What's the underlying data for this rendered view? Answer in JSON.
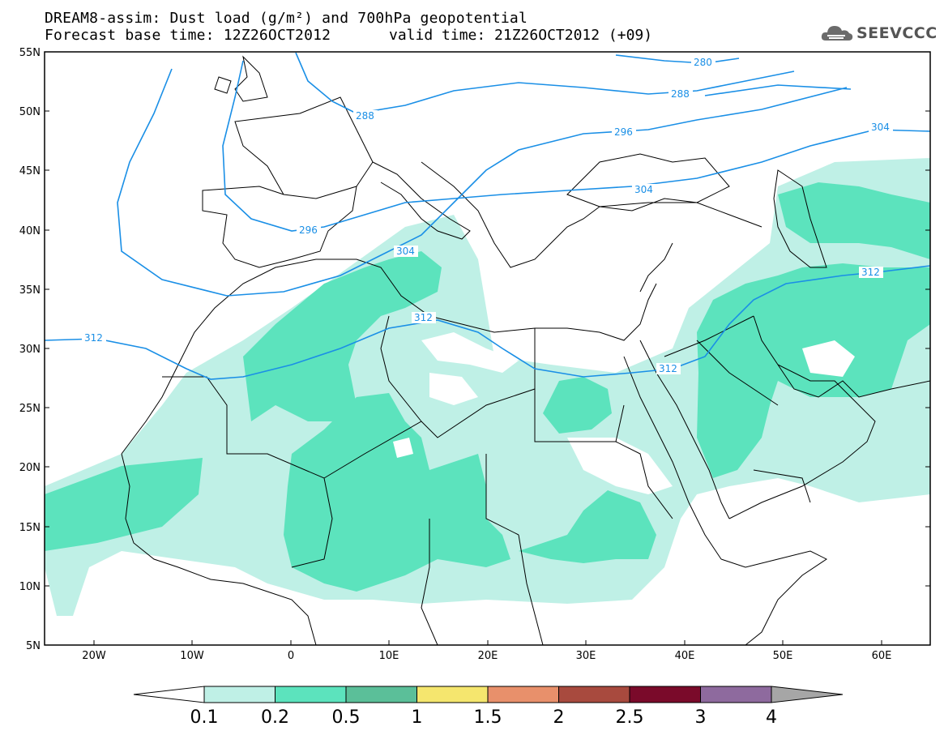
{
  "header": {
    "title_line1": "DREAM8-assim: Dust load (g/m²) and 700hPa geopotential",
    "base_time": "Forecast base time: 12Z26OCT2012",
    "valid_time": "valid time: 21Z26OCT2012 (+09)",
    "logo_text": "SEEVCCC",
    "logo_icon": "cloud-logo-icon"
  },
  "axes": {
    "lat_ticks": [
      "55N",
      "50N",
      "45N",
      "40N",
      "35N",
      "30N",
      "25N",
      "20N",
      "15N",
      "10N",
      "5N"
    ],
    "lon_ticks": [
      "20W",
      "10W",
      "0",
      "10E",
      "20E",
      "30E",
      "40E",
      "50E",
      "60E"
    ]
  },
  "contours": {
    "labels": [
      "280",
      "288",
      "288",
      "296",
      "296",
      "304",
      "304",
      "304",
      "312",
      "312",
      "312",
      "312"
    ],
    "color": "#1a8fe6"
  },
  "colorbar": {
    "ticks": [
      "0.1",
      "0.2",
      "0.5",
      "1",
      "1.5",
      "2",
      "2.5",
      "3",
      "4"
    ],
    "colors": [
      "#bff0e6",
      "#5ce3bd",
      "#5bbf99",
      "#f5e66e",
      "#e8906b",
      "#a84a3e",
      "#7a0a2a",
      "#8e6a9e"
    ],
    "under_color": "#ffffff",
    "over_color": "#a6a6a6"
  },
  "colors": {
    "land_lines": "#000000",
    "dust_light": "#bff0e6",
    "dust_mid": "#5ce3bd"
  }
}
